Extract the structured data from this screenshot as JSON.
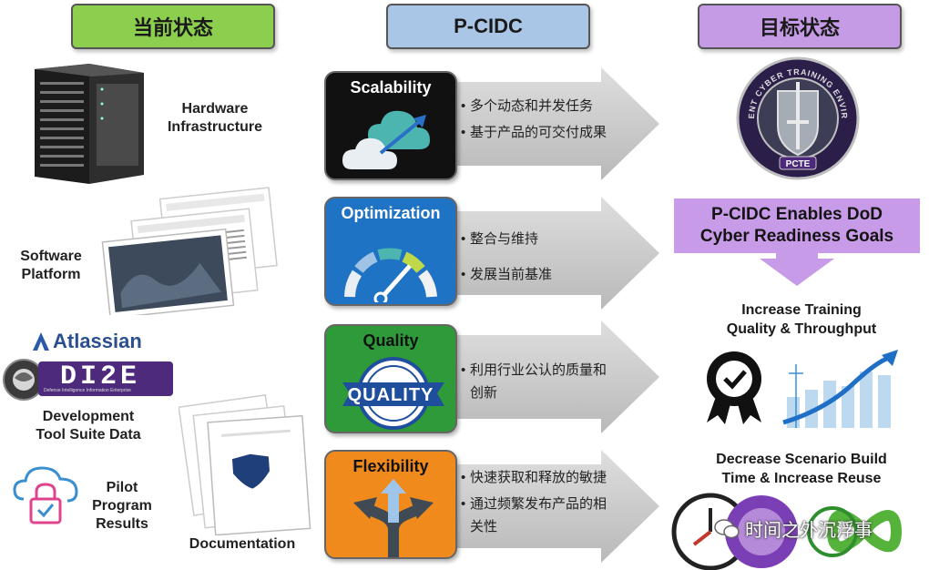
{
  "headers": {
    "current": "当前状态",
    "middle": "P-CIDC",
    "target": "目标状态"
  },
  "left": {
    "hardware": "Hardware\nInfrastructure",
    "software": "Software\nPlatform",
    "atlassian": "Atlassian",
    "dize": "DI2E",
    "dize_sub": "Defense Intelligence Information Enterprise",
    "devtools": "Development\nTool Suite Data",
    "pilot": "Pilot\nProgram\nResults",
    "documentation": "Documentation"
  },
  "pillars": [
    {
      "title": "Scalability",
      "bullets": [
        "多个动态和并发任务",
        "基于产品的可交付成果"
      ]
    },
    {
      "title": "Optimization",
      "bullets": [
        "整合与维持",
        "发展当前基准"
      ]
    },
    {
      "title": "Quality",
      "badge": "QUALITY",
      "bullets": [
        "利用行业公认的质量和创新"
      ]
    },
    {
      "title": "Flexibility",
      "bullets": [
        "快速获取和释放的敏捷",
        "通过频繁发布产品的相关性"
      ]
    }
  ],
  "right": {
    "seal_top": "PERSISTENT CYBER TRAINING ENVIRONMENT",
    "seal_bottom": "PCTE",
    "banner": "P-CIDC Enables DoD\nCyber Readiness Goals",
    "goal1": "Increase Training\nQuality & Throughput",
    "goal2": "Decrease Scenario Build\nTime & Increase Reuse"
  },
  "watermark": "时间之外沉浮事",
  "colors": {
    "green_header": "#8ccf4f",
    "blue_header": "#a9c6e6",
    "purple_header": "#c59be6",
    "scalability": "#111111",
    "optimization": "#1f73c4",
    "quality": "#2f9a3a",
    "flexibility": "#f08a1c",
    "banner": "#c89be8"
  }
}
